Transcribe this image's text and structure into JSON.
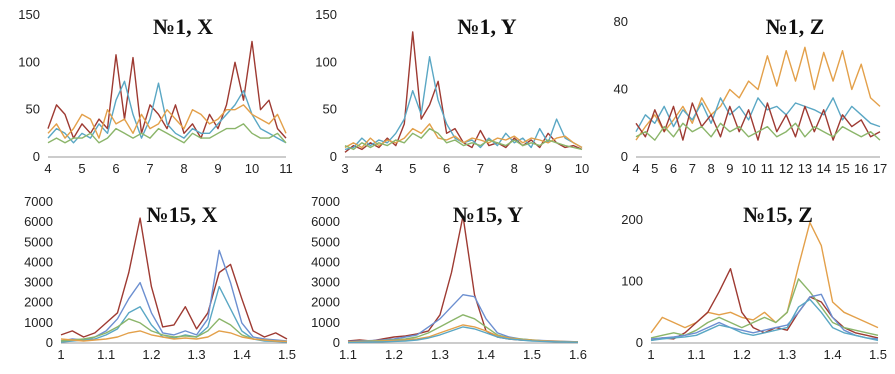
{
  "chart_data": [
    {
      "type": "line",
      "title": "№1, X",
      "xlim": [
        4,
        11
      ],
      "ylim": [
        0,
        150
      ],
      "x_ticks": [
        "4",
        "5",
        "6",
        "7",
        "8",
        "9",
        "10",
        "11"
      ],
      "y_ticks": [
        "0",
        "50",
        "100",
        "150"
      ],
      "x": [
        4,
        4.25,
        4.5,
        4.75,
        5,
        5.25,
        5.5,
        5.75,
        6,
        6.25,
        6.5,
        6.75,
        7,
        7.25,
        7.5,
        7.75,
        8,
        8.25,
        8.5,
        8.75,
        9,
        9.25,
        9.5,
        9.75,
        10,
        10.25,
        10.5,
        10.75,
        11
      ],
      "series": [
        {
          "color": "#9e3a32",
          "values": [
            30,
            55,
            45,
            20,
            35,
            25,
            40,
            30,
            108,
            40,
            105,
            25,
            55,
            45,
            30,
            55,
            25,
            35,
            20,
            45,
            30,
            55,
            100,
            60,
            122,
            50,
            60,
            30,
            20
          ]
        },
        {
          "color": "#5aa7c4",
          "values": [
            20,
            30,
            25,
            15,
            25,
            20,
            35,
            25,
            60,
            80,
            45,
            20,
            40,
            78,
            35,
            25,
            20,
            30,
            25,
            25,
            35,
            45,
            55,
            70,
            45,
            30,
            25,
            20,
            15
          ]
        },
        {
          "color": "#e3a04a",
          "values": [
            25,
            35,
            20,
            30,
            45,
            40,
            20,
            50,
            35,
            40,
            25,
            45,
            30,
            35,
            50,
            40,
            30,
            50,
            45,
            35,
            40,
            50,
            50,
            55,
            45,
            40,
            35,
            45,
            25
          ]
        },
        {
          "color": "#8bb56a",
          "values": [
            15,
            20,
            15,
            20,
            20,
            25,
            15,
            20,
            30,
            25,
            20,
            25,
            20,
            30,
            25,
            20,
            15,
            25,
            20,
            20,
            25,
            30,
            30,
            35,
            25,
            20,
            20,
            25,
            15
          ]
        }
      ]
    },
    {
      "type": "line",
      "title": "№1, Y",
      "xlim": [
        3,
        10
      ],
      "ylim": [
        0,
        150
      ],
      "x_ticks": [
        "3",
        "4",
        "5",
        "6",
        "7",
        "8",
        "9",
        "10"
      ],
      "y_ticks": [
        "0",
        "50",
        "100",
        "150"
      ],
      "x": [
        3,
        3.25,
        3.5,
        3.75,
        4,
        4.25,
        4.5,
        4.75,
        5,
        5.25,
        5.5,
        5.75,
        6,
        6.25,
        6.5,
        6.75,
        7,
        7.25,
        7.5,
        7.75,
        8,
        8.25,
        8.5,
        8.75,
        9,
        9.25,
        9.5,
        9.75,
        10
      ],
      "series": [
        {
          "color": "#9e3a32",
          "values": [
            5,
            12,
            8,
            15,
            10,
            20,
            12,
            35,
            132,
            40,
            55,
            80,
            25,
            30,
            15,
            10,
            28,
            12,
            15,
            10,
            20,
            12,
            18,
            10,
            25,
            15,
            10,
            12,
            8
          ]
        },
        {
          "color": "#5aa7c4",
          "values": [
            8,
            10,
            20,
            12,
            18,
            15,
            25,
            40,
            70,
            45,
            106,
            60,
            35,
            20,
            15,
            18,
            10,
            20,
            12,
            25,
            15,
            20,
            10,
            30,
            15,
            40,
            20,
            15,
            10
          ]
        },
        {
          "color": "#e3a04a",
          "values": [
            10,
            15,
            10,
            20,
            12,
            18,
            15,
            20,
            30,
            25,
            35,
            20,
            18,
            22,
            15,
            20,
            18,
            15,
            20,
            18,
            22,
            15,
            20,
            18,
            15,
            20,
            22,
            15,
            10
          ]
        },
        {
          "color": "#8bb56a",
          "values": [
            12,
            8,
            15,
            10,
            15,
            12,
            18,
            15,
            25,
            20,
            30,
            25,
            15,
            18,
            12,
            15,
            12,
            18,
            15,
            12,
            18,
            12,
            15,
            12,
            18,
            15,
            12,
            10,
            8
          ]
        }
      ]
    },
    {
      "type": "line",
      "title": "№1, Z",
      "xlim": [
        4,
        17
      ],
      "ylim": [
        0,
        80
      ],
      "x_ticks": [
        "4",
        "5",
        "6",
        "7",
        "8",
        "9",
        "10",
        "11",
        "12",
        "13",
        "14",
        "15",
        "16",
        "17"
      ],
      "y_ticks": [
        "0",
        "40",
        "80"
      ],
      "x": [
        4,
        4.5,
        5,
        5.5,
        6,
        6.5,
        7,
        7.5,
        8,
        8.5,
        9,
        9.5,
        10,
        10.5,
        11,
        11.5,
        12,
        12.5,
        13,
        13.5,
        14,
        14.5,
        15,
        15.5,
        16,
        16.5,
        17
      ],
      "series": [
        {
          "color": "#e3a04a",
          "values": [
            10,
            18,
            25,
            15,
            22,
            30,
            20,
            35,
            25,
            30,
            40,
            35,
            45,
            40,
            60,
            42,
            63,
            45,
            65,
            40,
            62,
            45,
            63,
            40,
            55,
            35,
            30
          ]
        },
        {
          "color": "#5aa7c4",
          "values": [
            15,
            25,
            20,
            30,
            18,
            28,
            22,
            32,
            20,
            35,
            25,
            30,
            22,
            35,
            28,
            30,
            25,
            32,
            30,
            28,
            25,
            35,
            22,
            30,
            25,
            20,
            18
          ]
        },
        {
          "color": "#9e3a32",
          "values": [
            20,
            12,
            28,
            15,
            30,
            10,
            32,
            18,
            25,
            12,
            30,
            15,
            28,
            10,
            32,
            15,
            25,
            12,
            30,
            15,
            28,
            10,
            25,
            18,
            22,
            12,
            15
          ]
        },
        {
          "color": "#8bb56a",
          "values": [
            12,
            15,
            10,
            18,
            12,
            20,
            15,
            18,
            12,
            20,
            15,
            18,
            12,
            15,
            18,
            12,
            15,
            20,
            12,
            18,
            15,
            12,
            18,
            15,
            12,
            15,
            10
          ]
        }
      ]
    },
    {
      "type": "line",
      "title": "№15, X",
      "xlim": [
        1,
        1.5
      ],
      "ylim": [
        0,
        7000
      ],
      "x_ticks": [
        "1",
        "1.1",
        "1.2",
        "1.3",
        "1.4",
        "1.5"
      ],
      "y_ticks": [
        "0",
        "1000",
        "2000",
        "3000",
        "4000",
        "5000",
        "6000",
        "7000"
      ],
      "x": [
        1,
        1.025,
        1.05,
        1.075,
        1.1,
        1.125,
        1.15,
        1.175,
        1.2,
        1.225,
        1.25,
        1.275,
        1.3,
        1.325,
        1.35,
        1.375,
        1.4,
        1.425,
        1.45,
        1.475,
        1.5
      ],
      "series": [
        {
          "color": "#9e3a32",
          "values": [
            400,
            600,
            300,
            500,
            1000,
            1500,
            3500,
            6200,
            2800,
            800,
            900,
            1800,
            700,
            1500,
            3500,
            3900,
            2200,
            600,
            300,
            500,
            200
          ]
        },
        {
          "color": "#6c8fd0",
          "values": [
            100,
            200,
            150,
            300,
            600,
            1200,
            2200,
            3000,
            1500,
            500,
            400,
            600,
            400,
            1200,
            4600,
            3000,
            1000,
            300,
            200,
            150,
            100
          ]
        },
        {
          "color": "#5aa7c4",
          "values": [
            50,
            100,
            150,
            200,
            400,
            700,
            1500,
            1800,
            900,
            300,
            250,
            400,
            300,
            800,
            2800,
            1700,
            600,
            200,
            100,
            80,
            50
          ]
        },
        {
          "color": "#8bb56a",
          "values": [
            100,
            150,
            200,
            300,
            500,
            800,
            1200,
            1000,
            600,
            400,
            300,
            350,
            300,
            600,
            1200,
            900,
            400,
            200,
            150,
            100,
            80
          ]
        },
        {
          "color": "#e3a04a",
          "values": [
            200,
            150,
            100,
            150,
            200,
            300,
            500,
            600,
            400,
            300,
            200,
            250,
            200,
            300,
            600,
            500,
            300,
            200,
            150,
            100,
            80
          ]
        }
      ]
    },
    {
      "type": "line",
      "title": "№15, Y",
      "xlim": [
        1.1,
        1.6
      ],
      "ylim": [
        0,
        7000
      ],
      "x_ticks": [
        "1.1",
        "1.2",
        "1.3",
        "1.4",
        "1.5",
        "1.6"
      ],
      "y_ticks": [
        "0",
        "1000",
        "2000",
        "3000",
        "4000",
        "5000",
        "6000",
        "7000"
      ],
      "x": [
        1.1,
        1.125,
        1.15,
        1.175,
        1.2,
        1.225,
        1.25,
        1.275,
        1.3,
        1.325,
        1.35,
        1.375,
        1.4,
        1.425,
        1.45,
        1.475,
        1.5,
        1.525,
        1.55,
        1.575,
        1.6
      ],
      "series": [
        {
          "color": "#9e3a32",
          "values": [
            100,
            150,
            100,
            200,
            300,
            350,
            450,
            600,
            1400,
            3500,
            6300,
            2400,
            600,
            300,
            200,
            150,
            120,
            100,
            80,
            60,
            50
          ]
        },
        {
          "color": "#6c8fd0",
          "values": [
            80,
            100,
            120,
            150,
            200,
            300,
            400,
            800,
            1200,
            1800,
            2400,
            2300,
            1200,
            500,
            300,
            200,
            150,
            120,
            100,
            80,
            60
          ]
        },
        {
          "color": "#8bb56a",
          "values": [
            50,
            80,
            100,
            120,
            150,
            200,
            300,
            500,
            800,
            1100,
            1400,
            1200,
            800,
            400,
            250,
            200,
            150,
            100,
            80,
            60,
            50
          ]
        },
        {
          "color": "#e3a04a",
          "values": [
            60,
            70,
            80,
            100,
            120,
            150,
            200,
            300,
            500,
            700,
            900,
            800,
            600,
            350,
            250,
            180,
            140,
            110,
            90,
            70,
            60
          ]
        },
        {
          "color": "#5aa7c4",
          "values": [
            30,
            40,
            50,
            60,
            80,
            100,
            150,
            250,
            400,
            600,
            800,
            700,
            500,
            300,
            200,
            150,
            100,
            80,
            60,
            50,
            40
          ]
        }
      ]
    },
    {
      "type": "line",
      "title": "№15, Z",
      "xlim": [
        1,
        1.5
      ],
      "ylim": [
        0,
        240
      ],
      "x_ticks": [
        "1",
        "1.1",
        "1.2",
        "1.3",
        "1.4",
        "1.5"
      ],
      "y_ticks": [
        "0",
        "100",
        "200"
      ],
      "x": [
        1,
        1.025,
        1.05,
        1.075,
        1.1,
        1.125,
        1.15,
        1.175,
        1.2,
        1.225,
        1.25,
        1.275,
        1.3,
        1.325,
        1.35,
        1.375,
        1.4,
        1.425,
        1.45,
        1.475,
        1.5
      ],
      "series": [
        {
          "color": "#e3a04a",
          "values": [
            20,
            50,
            40,
            30,
            40,
            60,
            55,
            60,
            50,
            45,
            60,
            40,
            60,
            150,
            235,
            190,
            80,
            60,
            50,
            40,
            30
          ]
        },
        {
          "color": "#9e3a32",
          "values": [
            5,
            10,
            8,
            20,
            40,
            60,
            100,
            145,
            60,
            30,
            20,
            30,
            25,
            60,
            90,
            80,
            50,
            30,
            20,
            15,
            10
          ]
        },
        {
          "color": "#8bb56a",
          "values": [
            10,
            15,
            20,
            15,
            25,
            40,
            50,
            40,
            30,
            40,
            50,
            40,
            60,
            125,
            100,
            70,
            40,
            30,
            25,
            20,
            15
          ]
        },
        {
          "color": "#6c8fd0",
          "values": [
            8,
            10,
            12,
            15,
            20,
            30,
            40,
            30,
            25,
            20,
            25,
            30,
            35,
            60,
            90,
            95,
            50,
            25,
            15,
            10,
            8
          ]
        },
        {
          "color": "#5aa7c4",
          "values": [
            5,
            8,
            10,
            12,
            15,
            25,
            35,
            30,
            20,
            15,
            20,
            25,
            30,
            70,
            85,
            60,
            30,
            20,
            15,
            10,
            5
          ]
        }
      ]
    }
  ]
}
